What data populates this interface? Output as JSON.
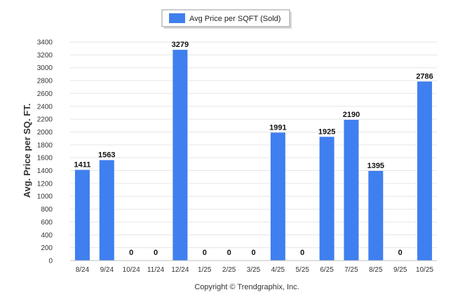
{
  "chart_data": {
    "type": "bar",
    "title": "",
    "xlabel": "",
    "ylabel": "Avg. Price per SQ. FT.",
    "ylim": [
      0,
      3400
    ],
    "ytick_step": 200,
    "grid": true,
    "legend_position": "top-center",
    "categories": [
      "8/24",
      "9/24",
      "10/24",
      "11/24",
      "12/24",
      "1/25",
      "2/25",
      "3/25",
      "4/25",
      "5/25",
      "6/25",
      "7/25",
      "8/25",
      "9/25",
      "10/25"
    ],
    "series": [
      {
        "name": "Avg Price per SQFT (Sold)",
        "color": "#3f7fef",
        "values": [
          1411,
          1563,
          0,
          0,
          3279,
          0,
          0,
          0,
          1991,
          0,
          1925,
          2190,
          1395,
          0,
          2786
        ]
      }
    ]
  },
  "footer": {
    "copyright": "Copyright © Trendgraphix, Inc."
  }
}
